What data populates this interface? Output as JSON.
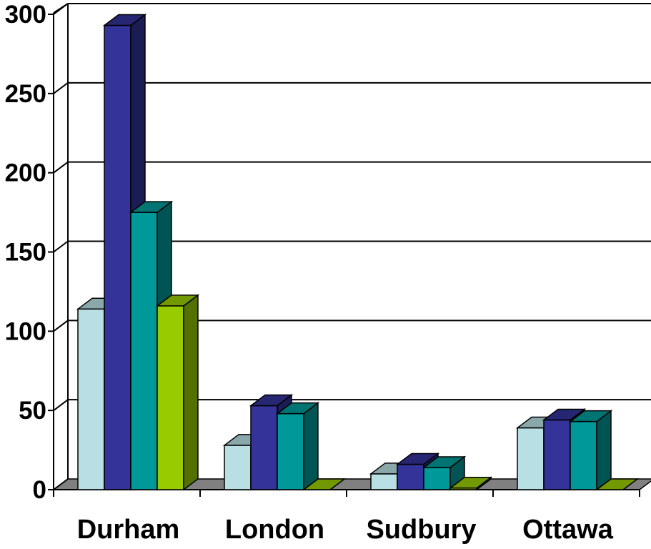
{
  "chart_data": {
    "type": "bar",
    "title": "",
    "xlabel": "",
    "ylabel": "",
    "categories": [
      "Durham",
      "London",
      "Sudbury",
      "Ottawa"
    ],
    "series": [
      {
        "color": "#b8dfe3",
        "values": [
          114,
          28,
          10,
          39
        ]
      },
      {
        "color": "#333399",
        "values": [
          293,
          53,
          16,
          44
        ]
      },
      {
        "color": "#009999",
        "values": [
          175,
          48,
          14,
          43
        ]
      },
      {
        "color": "#99cc00",
        "values": [
          116,
          0,
          1,
          0
        ]
      }
    ],
    "ylim": [
      0,
      300
    ],
    "yticks": [
      "0",
      "50",
      "100",
      "150",
      "200",
      "250",
      "300"
    ],
    "grid": true,
    "legend": "none",
    "style": "3d-clustered-column",
    "floor_color": "#808080"
  }
}
